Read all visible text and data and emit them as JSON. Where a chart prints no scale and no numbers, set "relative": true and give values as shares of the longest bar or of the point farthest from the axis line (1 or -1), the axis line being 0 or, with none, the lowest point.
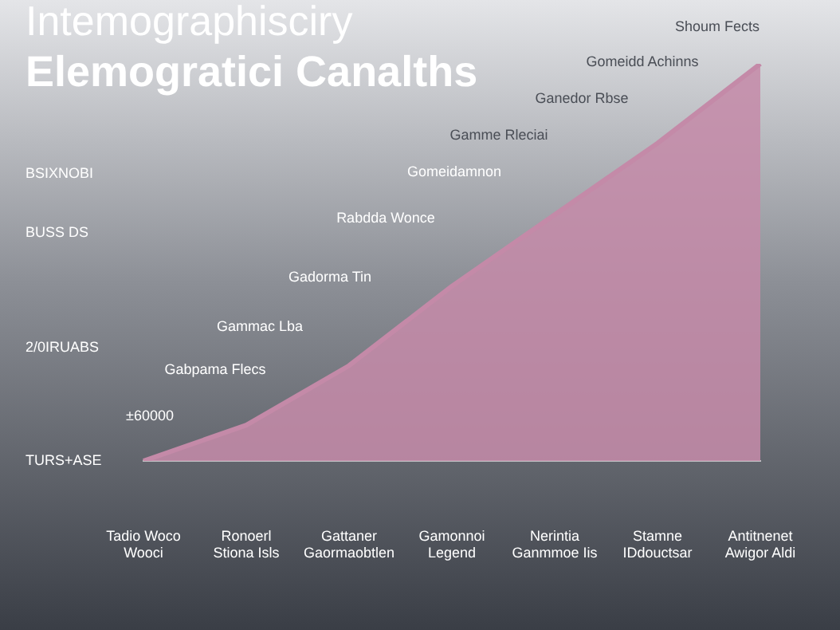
{
  "chart_data": {
    "type": "area",
    "title": "Elemogratici Canalths",
    "subtitle": "Intemographisciry",
    "categories": [
      "Tadio Woco\nWooci",
      "Ronoerl\nStiona Isls",
      "Gattaner\nGaormaobtlen",
      "Gamonnoi\nLegend",
      "Nerintia\nGanmmoe Iis",
      "Stamne\nIDdouctsar",
      "Antitnenet\nAwigor Aldi"
    ],
    "relative": true,
    "series": [
      {
        "color": "#c48aa8",
        "values": [
          0,
          0.09,
          0.24,
          0.44,
          0.62,
          0.8,
          1
        ]
      }
    ],
    "grid": false,
    "legend": false,
    "annotations": [
      "BSIXNOBI",
      "BUSS DS",
      "2/0IRUABS",
      "TURS+ASE",
      "±60000",
      "Gabpama Flecs",
      "Gammac Lba",
      "Gadorma Tin",
      "Rabdda Wonce",
      "Gomeidamnon",
      "Gamme Rleciai",
      "Ganedor Rbse",
      "Gomeidd Achinns",
      "Shoum Fects"
    ]
  }
}
